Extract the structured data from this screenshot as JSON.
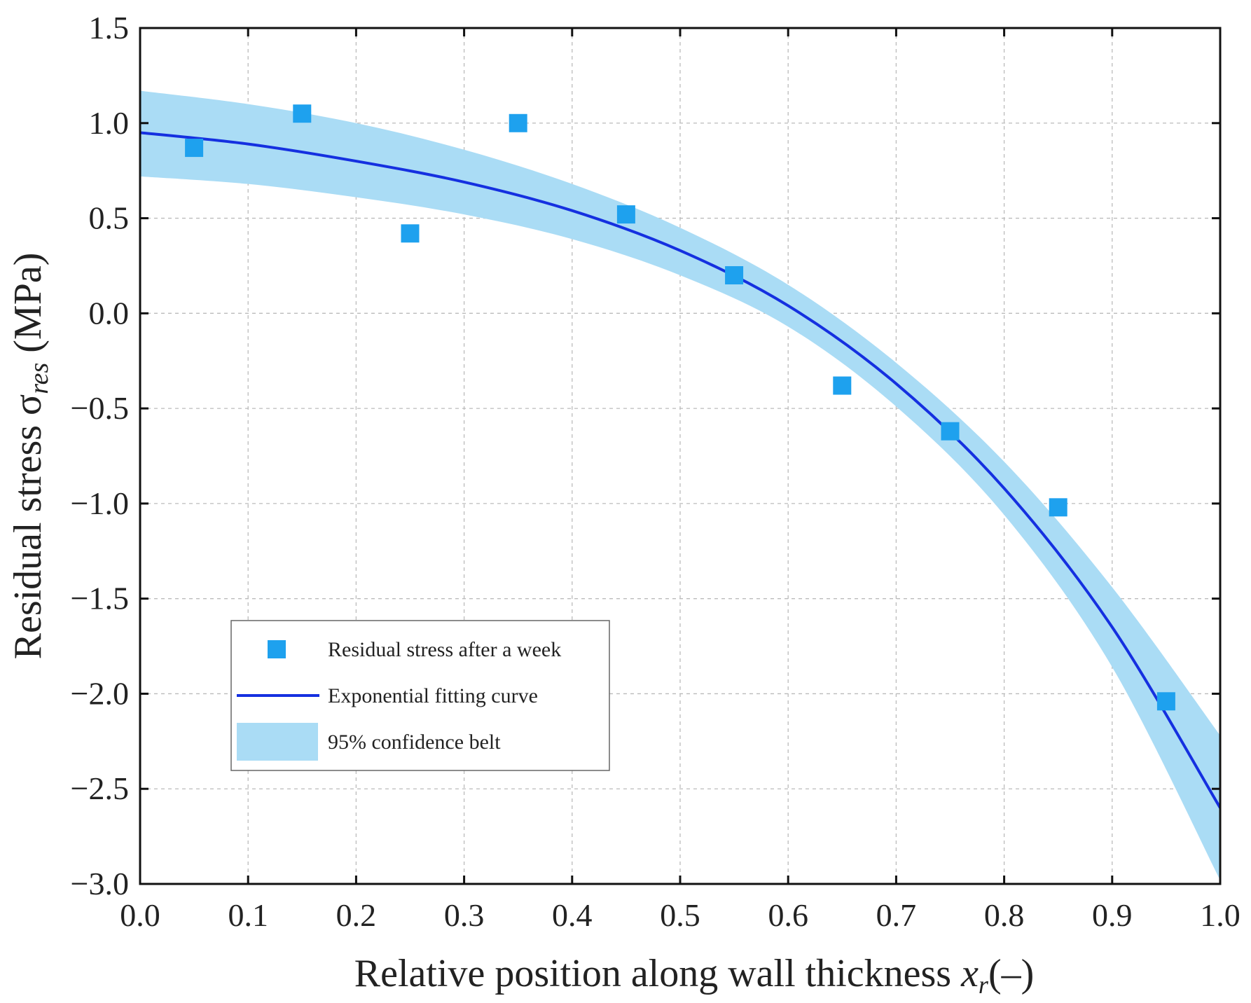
{
  "chart_data": {
    "type": "scatter",
    "title": "",
    "xlabel": {
      "main": "Relative position along wall thickness ",
      "var": "x",
      "sub": "r",
      "unit": "(–)"
    },
    "ylabel": {
      "main": "Residual stress σ",
      "sub": "res",
      "unit": " (MPa)"
    },
    "xlim": [
      0.0,
      1.0
    ],
    "ylim": [
      -3.0,
      1.5
    ],
    "xticks": [
      "0.0",
      "0.1",
      "0.2",
      "0.3",
      "0.4",
      "0.5",
      "0.6",
      "0.7",
      "0.8",
      "0.9",
      "1.0"
    ],
    "yticks": [
      "1.5",
      "1.0",
      "0.5",
      "0.0",
      "−0.5",
      "−1.0",
      "−1.5",
      "−2.0",
      "−2.5",
      "−3.0"
    ],
    "grid": true,
    "legend_position": "lower-left",
    "series": [
      {
        "name": "Residual stress after a week",
        "kind": "scatter",
        "color": "#1ea1ee",
        "x": [
          0.05,
          0.15,
          0.25,
          0.35,
          0.45,
          0.55,
          0.65,
          0.75,
          0.85,
          0.95
        ],
        "y": [
          0.87,
          1.05,
          0.42,
          1.0,
          0.52,
          0.2,
          -0.38,
          -0.62,
          -1.02,
          -2.04
        ]
      },
      {
        "name": "Exponential fitting curve",
        "kind": "line",
        "color": "#1530e0",
        "x": [
          0.0,
          0.1,
          0.2,
          0.3,
          0.4,
          0.5,
          0.6,
          0.7,
          0.8,
          0.9,
          1.0
        ],
        "y": [
          0.95,
          0.89,
          0.8,
          0.69,
          0.54,
          0.33,
          0.04,
          -0.37,
          -0.92,
          -1.65,
          -2.6
        ]
      },
      {
        "name": "95% confidence belt",
        "kind": "band",
        "color": "#aadcf5",
        "x": [
          0.0,
          0.1,
          0.2,
          0.3,
          0.4,
          0.5,
          0.6,
          0.7,
          0.8,
          0.9,
          1.0
        ],
        "upper": [
          1.17,
          1.1,
          1.0,
          0.86,
          0.68,
          0.45,
          0.15,
          -0.26,
          -0.78,
          -1.44,
          -2.22
        ],
        "lower": [
          0.72,
          0.68,
          0.61,
          0.52,
          0.39,
          0.2,
          -0.07,
          -0.49,
          -1.06,
          -1.86,
          -2.98
        ]
      }
    ]
  }
}
